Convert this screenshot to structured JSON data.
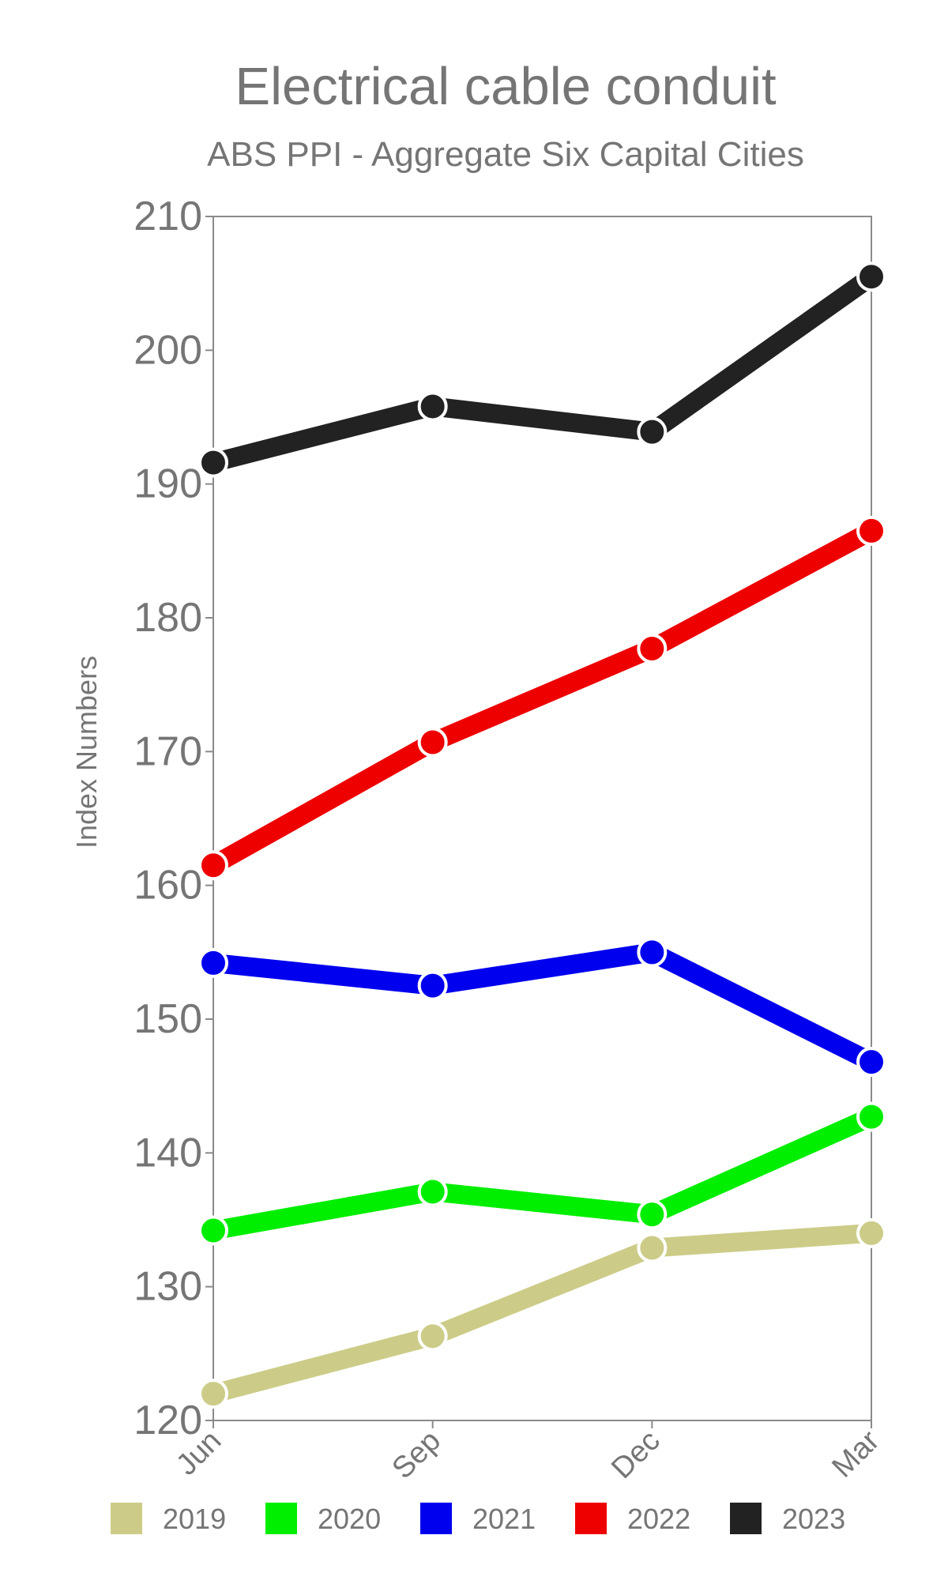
{
  "chart_data": {
    "type": "line",
    "title": "Electrical cable conduit",
    "subtitle": "ABS PPI - Aggregate Six Capital Cities",
    "xlabel": "",
    "ylabel": "Index Numbers",
    "categories": [
      "Jun",
      "Sep",
      "Dec",
      "Mar"
    ],
    "ylim": [
      120,
      210
    ],
    "yticks": [
      120,
      130,
      140,
      150,
      160,
      170,
      180,
      190,
      200,
      210
    ],
    "grid": false,
    "legend_position": "bottom",
    "series": [
      {
        "name": "2019",
        "color": "#cccc88",
        "values": [
          122.0,
          126.3,
          132.9,
          134.0
        ]
      },
      {
        "name": "2020",
        "color": "#00ee00",
        "values": [
          134.2,
          137.1,
          135.4,
          142.7
        ]
      },
      {
        "name": "2021",
        "color": "#0000ee",
        "values": [
          154.2,
          152.5,
          155.0,
          146.8
        ]
      },
      {
        "name": "2022",
        "color": "#ee0000",
        "values": [
          161.5,
          170.7,
          177.7,
          186.5
        ]
      },
      {
        "name": "2023",
        "color": "#222222",
        "values": [
          191.6,
          195.8,
          193.9,
          205.5
        ]
      }
    ]
  }
}
